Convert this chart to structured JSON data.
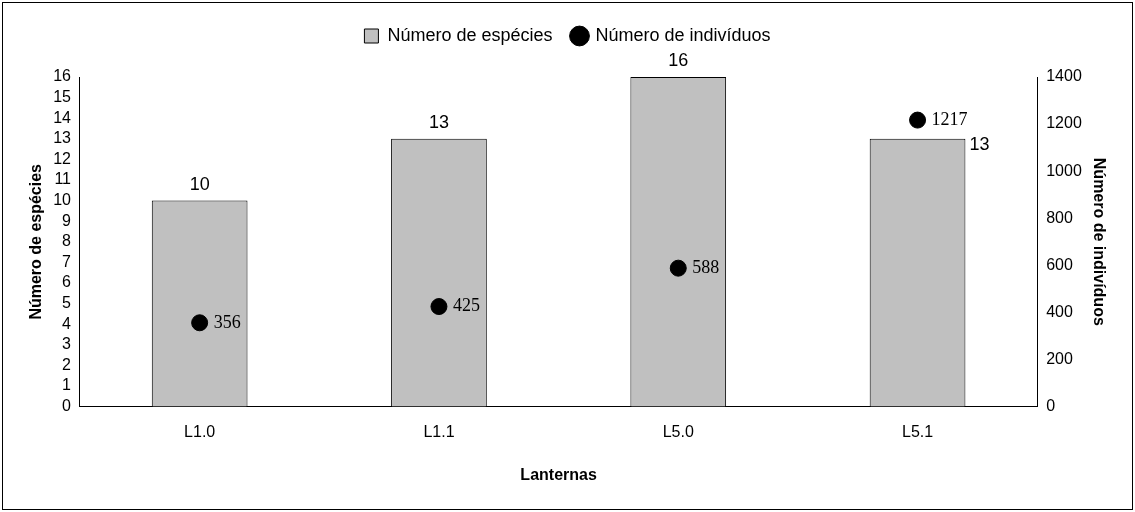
{
  "chart_data": {
    "type": "bar",
    "categories": [
      "L1.0",
      "L1.1",
      "L5.0",
      "L5.1"
    ],
    "xlabel": "Lanternas",
    "ylabel": "Número de espécies",
    "y2label": "Número de indivíduos",
    "series": [
      {
        "name": "Número de espécies",
        "color": "#c0c0c0",
        "values": [
          10,
          13,
          16,
          13
        ]
      },
      {
        "name": "Número de indivíduos",
        "type": "scatter",
        "axis": "y2",
        "color": "#000000",
        "values": [
          356,
          425,
          588,
          1217
        ]
      }
    ],
    "ylim": [
      0,
      16
    ],
    "yticks": [
      0,
      1,
      2,
      3,
      4,
      5,
      6,
      7,
      8,
      9,
      10,
      11,
      12,
      13,
      14,
      15,
      16
    ],
    "y2lim": [
      0,
      1400
    ],
    "y2ticks": [
      0,
      200,
      400,
      600,
      800,
      1000,
      1200,
      1400
    ],
    "legend": "top",
    "data_labels": true,
    "grid": false
  }
}
